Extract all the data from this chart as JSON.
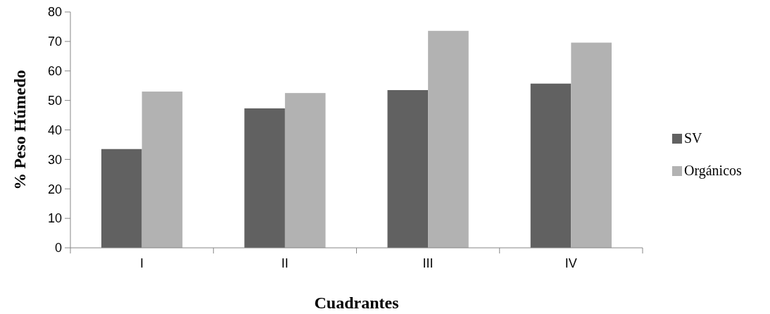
{
  "chart_data": {
    "type": "bar",
    "xlabel": "Cuadrantes",
    "ylabel": "% Peso Húmedo",
    "categories": [
      "I",
      "II",
      "III",
      "IV"
    ],
    "series": [
      {
        "name": "SV",
        "color": "#616161",
        "values": [
          33.5,
          47.3,
          53.5,
          55.7
        ]
      },
      {
        "name": "Orgánicos",
        "color": "#b2b2b2",
        "values": [
          53,
          52.5,
          73.6,
          69.6
        ]
      }
    ],
    "ylim": [
      0,
      80
    ],
    "yticks": [
      0,
      10,
      20,
      30,
      40,
      50,
      60,
      70,
      80
    ],
    "legend": "right",
    "grid": false
  }
}
